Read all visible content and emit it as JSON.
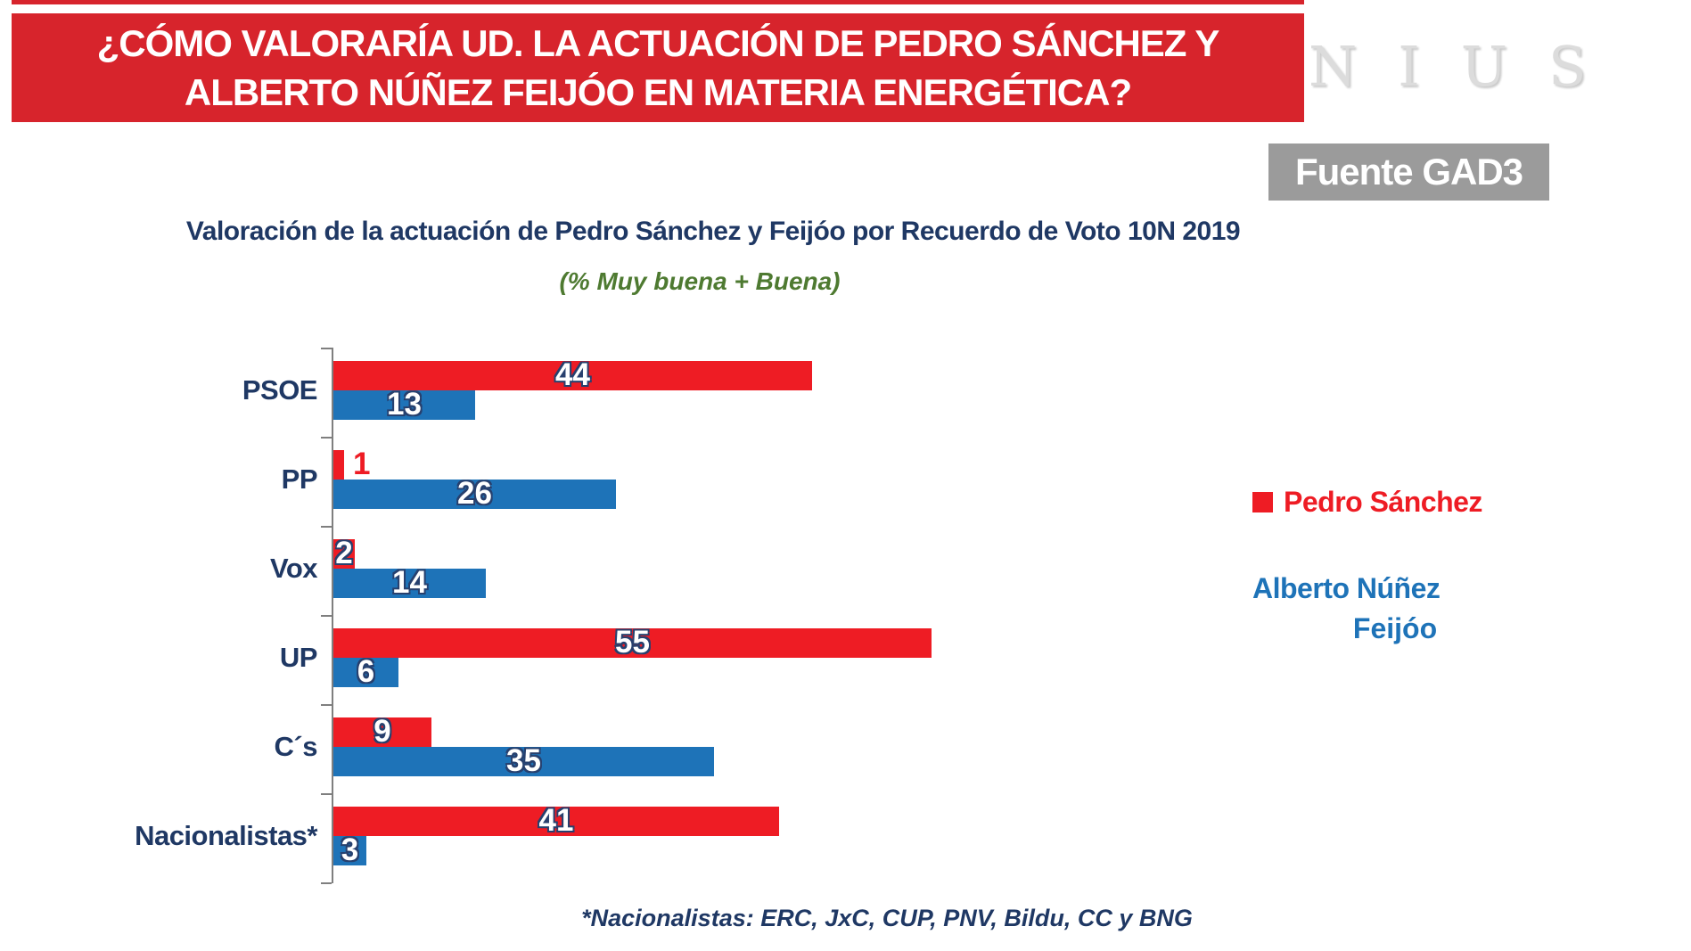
{
  "banner": {
    "line1": "¿CÓMO VALORARÍA UD. LA ACTUACIÓN DE PEDRO SÁNCHEZ Y",
    "line2": "ALBERTO NÚÑEZ FEIJÓO EN MATERIA ENERGÉTICA?"
  },
  "logo": {
    "text": "NIUS"
  },
  "source_badge": {
    "label": "Fuente GAD3"
  },
  "chart": {
    "title": "Valoración de la actuación de Pedro Sánchez y Feijóo por Recuerdo de Voto 10N 2019",
    "subtitle": "(% Muy buena + Buena)"
  },
  "chart_data": {
    "type": "bar",
    "orientation": "horizontal",
    "categories": [
      "PSOE",
      "PP",
      "Vox",
      "UP",
      "C´s",
      "Nacionalistas*"
    ],
    "series": [
      {
        "name": "Pedro Sánchez",
        "color": "#EE1C24",
        "values": [
          44,
          1,
          2,
          55,
          9,
          41
        ],
        "labels_outside": [
          "PP"
        ]
      },
      {
        "name": "Alberto Núñez Feijóo",
        "color": "#1E73B8",
        "values": [
          13,
          26,
          14,
          6,
          35,
          3
        ],
        "labels_outside": []
      }
    ],
    "xlim": [
      0,
      60
    ],
    "grid": false,
    "legend_position": "right",
    "value_labels": "on-bars",
    "footnote": "*Nacionalistas: ERC, JxC, CUP, PNV, Bildu, CC y BNG"
  },
  "legend": {
    "entries": [
      {
        "color": "#EE1C24",
        "lines": [
          "Pedro Sánchez"
        ]
      },
      {
        "color": "#1E73B8",
        "lines": [
          "Alberto Núñez",
          "Feijóo"
        ]
      }
    ]
  },
  "colors": {
    "banner_bg": "#D7242C",
    "bar_red": "#EE1C24",
    "bar_blue": "#1E73B8",
    "title_navy": "#1F3864",
    "subtitle_green": "#4E7A31",
    "badge_bg": "#9B9B9B",
    "axis_gray": "#7F7F7F",
    "logo_gray": "#DCDCDC"
  }
}
